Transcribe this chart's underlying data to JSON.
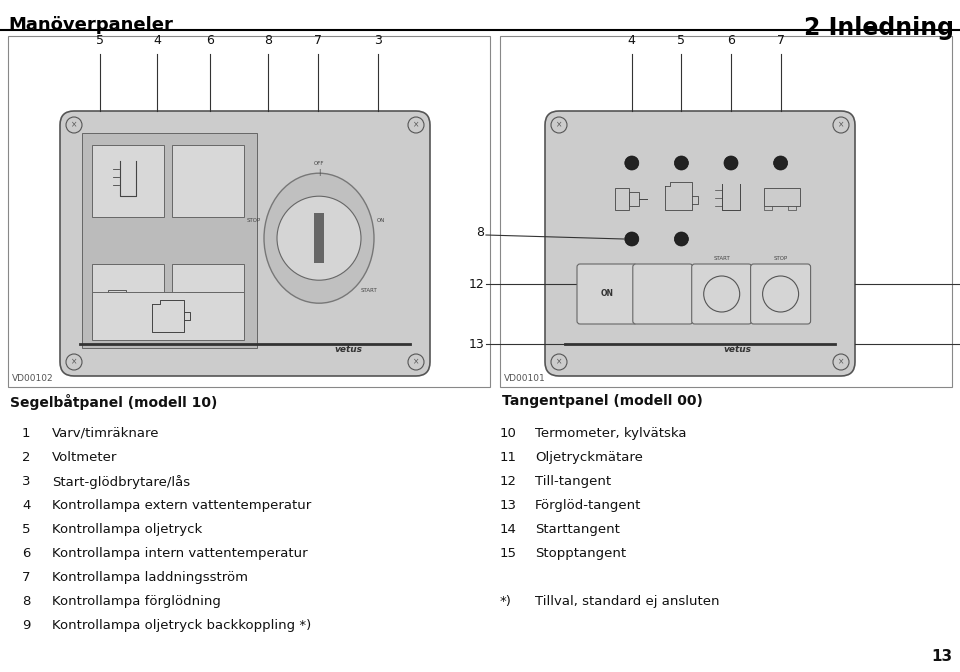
{
  "title_left": "Manöverpaneler",
  "title_right": "2 Inledning",
  "page_number": "13",
  "bg_color": "#ffffff",
  "left_panel": {
    "label": "Segelbåtpanel (modell 10)",
    "code": "VD00102",
    "callouts": [
      "5",
      "4",
      "6",
      "8",
      "7",
      "3"
    ]
  },
  "right_panel": {
    "label": "Tangentpanel (modell 00)",
    "code": "VD00101",
    "callouts_top": [
      "4",
      "5",
      "6",
      "7"
    ]
  },
  "items_left": [
    [
      "1",
      "Varv/timräknare"
    ],
    [
      "2",
      "Voltmeter"
    ],
    [
      "3",
      "Start-glödbrytare/lås"
    ],
    [
      "4",
      "Kontrollampa extern vattentemperatur"
    ],
    [
      "5",
      "Kontrollampa oljetryck"
    ],
    [
      "6",
      "Kontrollampa intern vattentemperatur"
    ],
    [
      "7",
      "Kontrollampa laddningsström"
    ],
    [
      "8",
      "Kontrollampa förglödning"
    ],
    [
      "9",
      "Kontrollampa oljetryck backkoppling *)"
    ]
  ],
  "items_right": [
    [
      "10",
      "Termometer, kylvätska"
    ],
    [
      "11",
      "Oljetryckmätare"
    ],
    [
      "12",
      "Till-tangent"
    ],
    [
      "13",
      "Förglöd-tangent"
    ],
    [
      "14",
      "Starttangent"
    ],
    [
      "15",
      "Stopptangent"
    ]
  ],
  "footnote_num": "*)",
  "footnote_text": "Tillval, standard ej ansluten"
}
